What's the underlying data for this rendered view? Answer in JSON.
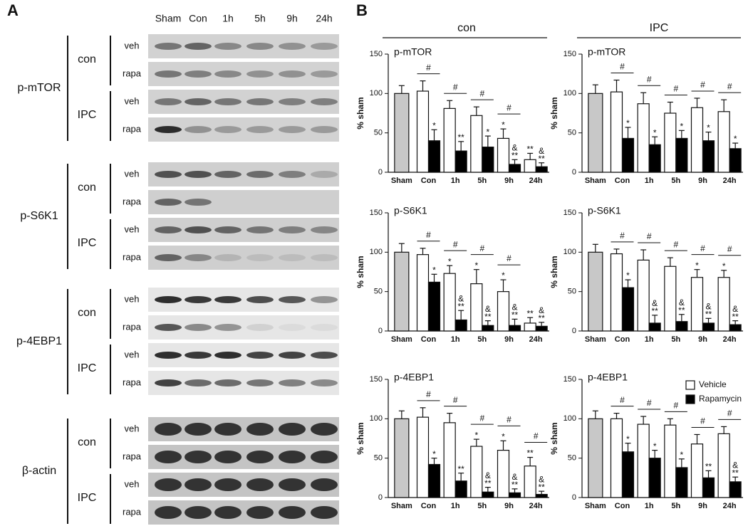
{
  "panel_labels": [
    "A",
    "B"
  ],
  "blots": {
    "lanes": [
      "Sham",
      "Con",
      "1h",
      "5h",
      "9h",
      "24h"
    ],
    "proteins": [
      {
        "name": "p-mTOR",
        "groups": [
          {
            "name": "con",
            "treatments": [
              "veh",
              "rapa"
            ]
          },
          {
            "name": "IPC",
            "treatments": [
              "veh",
              "rapa"
            ]
          }
        ]
      },
      {
        "name": "p-S6K1",
        "groups": [
          {
            "name": "con",
            "treatments": [
              "veh",
              "rapa"
            ]
          },
          {
            "name": "IPC",
            "treatments": [
              "veh",
              "rapa"
            ]
          }
        ]
      },
      {
        "name": "p-4EBP1",
        "groups": [
          {
            "name": "con",
            "treatments": [
              "veh",
              "rapa"
            ]
          },
          {
            "name": "IPC",
            "treatments": [
              "veh",
              "rapa"
            ]
          }
        ]
      },
      {
        "name": "β-actin",
        "groups": [
          {
            "name": "con",
            "treatments": [
              "veh",
              "rapa"
            ]
          },
          {
            "name": "IPC",
            "treatments": [
              "veh",
              "rapa"
            ]
          }
        ]
      }
    ]
  },
  "column_headers": [
    "con",
    "IPC"
  ],
  "chart_data": [
    {
      "type": "bar",
      "title": "p-mTOR",
      "y_label": "% sham",
      "categories": [
        "Sham",
        "Con",
        "1h",
        "5h",
        "9h",
        "24h"
      ],
      "ylim": [
        0,
        150
      ],
      "yticks": [
        0,
        50,
        100,
        150
      ],
      "first_category_color": "#c8c8c8",
      "comparisons": [
        null,
        "#",
        "#",
        "#",
        "#",
        null
      ],
      "series": [
        {
          "name": "Vehicle",
          "color": "#ffffff",
          "values": [
            100,
            103,
            81,
            72,
            43,
            16
          ],
          "errors": [
            10,
            13,
            10,
            11,
            12,
            8
          ],
          "annotations": [
            null,
            null,
            null,
            null,
            [
              "*"
            ],
            [
              "**"
            ]
          ]
        },
        {
          "name": "Rapamycin",
          "color": "#000000",
          "values": [
            null,
            40,
            27,
            32,
            10,
            7
          ],
          "errors": [
            null,
            14,
            12,
            14,
            6,
            5
          ],
          "annotations": [
            null,
            [
              "*"
            ],
            [
              "**"
            ],
            [
              "*"
            ],
            [
              "&",
              "**"
            ],
            [
              "&",
              "**"
            ]
          ]
        }
      ]
    },
    {
      "type": "bar",
      "title": "p-mTOR",
      "y_label": "% sham",
      "categories": [
        "Sham",
        "Con",
        "1h",
        "5h",
        "9h",
        "24h"
      ],
      "ylim": [
        0,
        150
      ],
      "yticks": [
        0,
        50,
        100,
        150
      ],
      "first_category_color": "#c8c8c8",
      "comparisons": [
        null,
        "#",
        "#",
        "#",
        "#",
        "#"
      ],
      "series": [
        {
          "name": "Vehicle",
          "color": "#ffffff",
          "values": [
            100,
            102,
            87,
            75,
            82,
            77
          ],
          "errors": [
            11,
            15,
            14,
            14,
            12,
            15
          ],
          "annotations": [
            null,
            null,
            null,
            null,
            null,
            null
          ]
        },
        {
          "name": "Rapamycin",
          "color": "#000000",
          "values": [
            null,
            43,
            35,
            43,
            40,
            30
          ],
          "errors": [
            null,
            14,
            10,
            10,
            11,
            7
          ],
          "annotations": [
            null,
            [
              "*"
            ],
            [
              "*"
            ],
            [
              "*"
            ],
            [
              "*"
            ],
            [
              "*"
            ]
          ]
        }
      ]
    },
    {
      "type": "bar",
      "title": "p-S6K1",
      "y_label": "% sham",
      "categories": [
        "Sham",
        "Con",
        "1h",
        "5h",
        "9h",
        "24h"
      ],
      "ylim": [
        0,
        150
      ],
      "yticks": [
        0,
        50,
        100,
        150
      ],
      "first_category_color": "#c8c8c8",
      "comparisons": [
        null,
        "#",
        "#",
        "#",
        "#",
        null
      ],
      "series": [
        {
          "name": "Vehicle",
          "color": "#ffffff",
          "values": [
            100,
            97,
            73,
            60,
            50,
            10
          ],
          "errors": [
            11,
            8,
            10,
            18,
            15,
            7
          ],
          "annotations": [
            null,
            null,
            [
              "*"
            ],
            [
              "*"
            ],
            [
              "*"
            ],
            [
              "**"
            ]
          ]
        },
        {
          "name": "Rapamycin",
          "color": "#000000",
          "values": [
            null,
            62,
            14,
            7,
            7,
            6
          ],
          "errors": [
            null,
            10,
            12,
            6,
            8,
            5
          ],
          "annotations": [
            null,
            [
              "*"
            ],
            [
              "&",
              "**"
            ],
            [
              "&",
              "**"
            ],
            [
              "&",
              "**"
            ],
            [
              "&",
              "**"
            ]
          ]
        }
      ]
    },
    {
      "type": "bar",
      "title": "p-S6K1",
      "y_label": "% sham",
      "categories": [
        "Sham",
        "Con",
        "1h",
        "5h",
        "9h",
        "24h"
      ],
      "ylim": [
        0,
        150
      ],
      "yticks": [
        0,
        50,
        100,
        150
      ],
      "first_category_color": "#c8c8c8",
      "comparisons": [
        null,
        "#",
        "#",
        "#",
        "#",
        "#"
      ],
      "series": [
        {
          "name": "Vehicle",
          "color": "#ffffff",
          "values": [
            100,
            98,
            90,
            82,
            68,
            68
          ],
          "errors": [
            10,
            6,
            13,
            11,
            10,
            9
          ],
          "annotations": [
            null,
            null,
            null,
            null,
            [
              "*"
            ],
            [
              "*"
            ]
          ]
        },
        {
          "name": "Rapamycin",
          "color": "#000000",
          "values": [
            null,
            55,
            10,
            12,
            10,
            8
          ],
          "errors": [
            null,
            10,
            10,
            9,
            6,
            5
          ],
          "annotations": [
            null,
            [
              "*"
            ],
            [
              "&",
              "**"
            ],
            [
              "&",
              "**"
            ],
            [
              "&",
              "**"
            ],
            [
              "&",
              "**"
            ]
          ]
        }
      ]
    },
    {
      "type": "bar",
      "title": "p-4EBP1",
      "y_label": "% sham",
      "categories": [
        "Sham",
        "Con",
        "1h",
        "5h",
        "9h",
        "24h"
      ],
      "ylim": [
        0,
        150
      ],
      "yticks": [
        0,
        50,
        100,
        150
      ],
      "first_category_color": "#c8c8c8",
      "comparisons": [
        null,
        "#",
        "#",
        "#",
        "#",
        "#"
      ],
      "series": [
        {
          "name": "Vehicle",
          "color": "#ffffff",
          "values": [
            100,
            102,
            95,
            65,
            60,
            40
          ],
          "errors": [
            10,
            12,
            12,
            9,
            12,
            11
          ],
          "annotations": [
            null,
            null,
            null,
            [
              "*"
            ],
            [
              "*"
            ],
            [
              "**"
            ]
          ]
        },
        {
          "name": "Rapamycin",
          "color": "#000000",
          "values": [
            null,
            42,
            21,
            7,
            6,
            4
          ],
          "errors": [
            null,
            8,
            10,
            6,
            5,
            4
          ],
          "annotations": [
            null,
            [
              "*"
            ],
            [
              "**"
            ],
            [
              "&",
              "**"
            ],
            [
              "&",
              "**"
            ],
            [
              "&",
              "**"
            ]
          ]
        }
      ]
    },
    {
      "type": "bar",
      "title": "p-4EBP1",
      "y_label": "% sham",
      "categories": [
        "Sham",
        "Con",
        "1h",
        "5h",
        "9h",
        "24h"
      ],
      "ylim": [
        0,
        150
      ],
      "yticks": [
        0,
        50,
        100,
        150
      ],
      "first_category_color": "#c8c8c8",
      "legend": "upper right",
      "comparisons": [
        null,
        "#",
        "#",
        "#",
        "#",
        "#"
      ],
      "series": [
        {
          "name": "Vehicle",
          "color": "#ffffff",
          "values": [
            100,
            100,
            93,
            92,
            68,
            81
          ],
          "errors": [
            10,
            7,
            10,
            8,
            12,
            9
          ],
          "annotations": [
            null,
            null,
            null,
            null,
            null,
            null
          ]
        },
        {
          "name": "Rapamycin",
          "color": "#000000",
          "values": [
            null,
            58,
            50,
            38,
            25,
            20
          ],
          "errors": [
            null,
            11,
            10,
            11,
            9,
            6
          ],
          "annotations": [
            null,
            [
              "*"
            ],
            [
              "*"
            ],
            [
              "*"
            ],
            [
              "**"
            ],
            [
              "&",
              "**"
            ]
          ]
        }
      ]
    }
  ]
}
